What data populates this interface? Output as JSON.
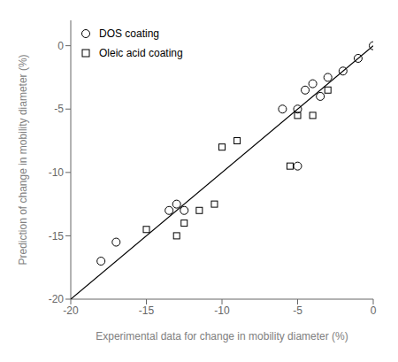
{
  "chart_data": {
    "type": "scatter",
    "xlabel": "Experimental data for change in mobility diameter (%)",
    "ylabel": "Prediction of change in mobility diameter (%)",
    "xlim": [
      -20,
      0
    ],
    "ylim": [
      -20,
      2
    ],
    "xticks": [
      -20,
      -15,
      -10,
      -5,
      0
    ],
    "yticks": [
      -20,
      -15,
      -10,
      -5,
      0
    ],
    "grid": false,
    "legend": "upper left",
    "series": [
      {
        "type": "line",
        "color": "#000000",
        "x": [
          -20,
          0
        ],
        "values": [
          -20,
          0
        ]
      },
      {
        "type": "scatter",
        "name": "DOS coating",
        "color": "#000000",
        "marker": "circle",
        "x": [
          0,
          -1,
          -2,
          -3,
          -3.5,
          -4,
          -4.5,
          -5,
          -5,
          -6,
          -12.5,
          -13,
          -13.5,
          -17,
          -18
        ],
        "values": [
          0,
          -1,
          -2,
          -2.5,
          -4,
          -3,
          -3.5,
          -9.5,
          -5,
          -5,
          -13,
          -12.5,
          -13,
          -15.5,
          -17
        ]
      },
      {
        "type": "scatter",
        "name": "Oleic acid coating",
        "color": "#000000",
        "marker": "square",
        "x": [
          -3,
          -4,
          -9,
          -10,
          -10.5,
          -11.5,
          -12.5,
          -13,
          -5,
          -5.5,
          -15
        ],
        "values": [
          -3.5,
          -5.5,
          -7.5,
          -8,
          -12.5,
          -13,
          -14,
          -15,
          -5.5,
          -9.5,
          -14.5
        ]
      }
    ]
  }
}
